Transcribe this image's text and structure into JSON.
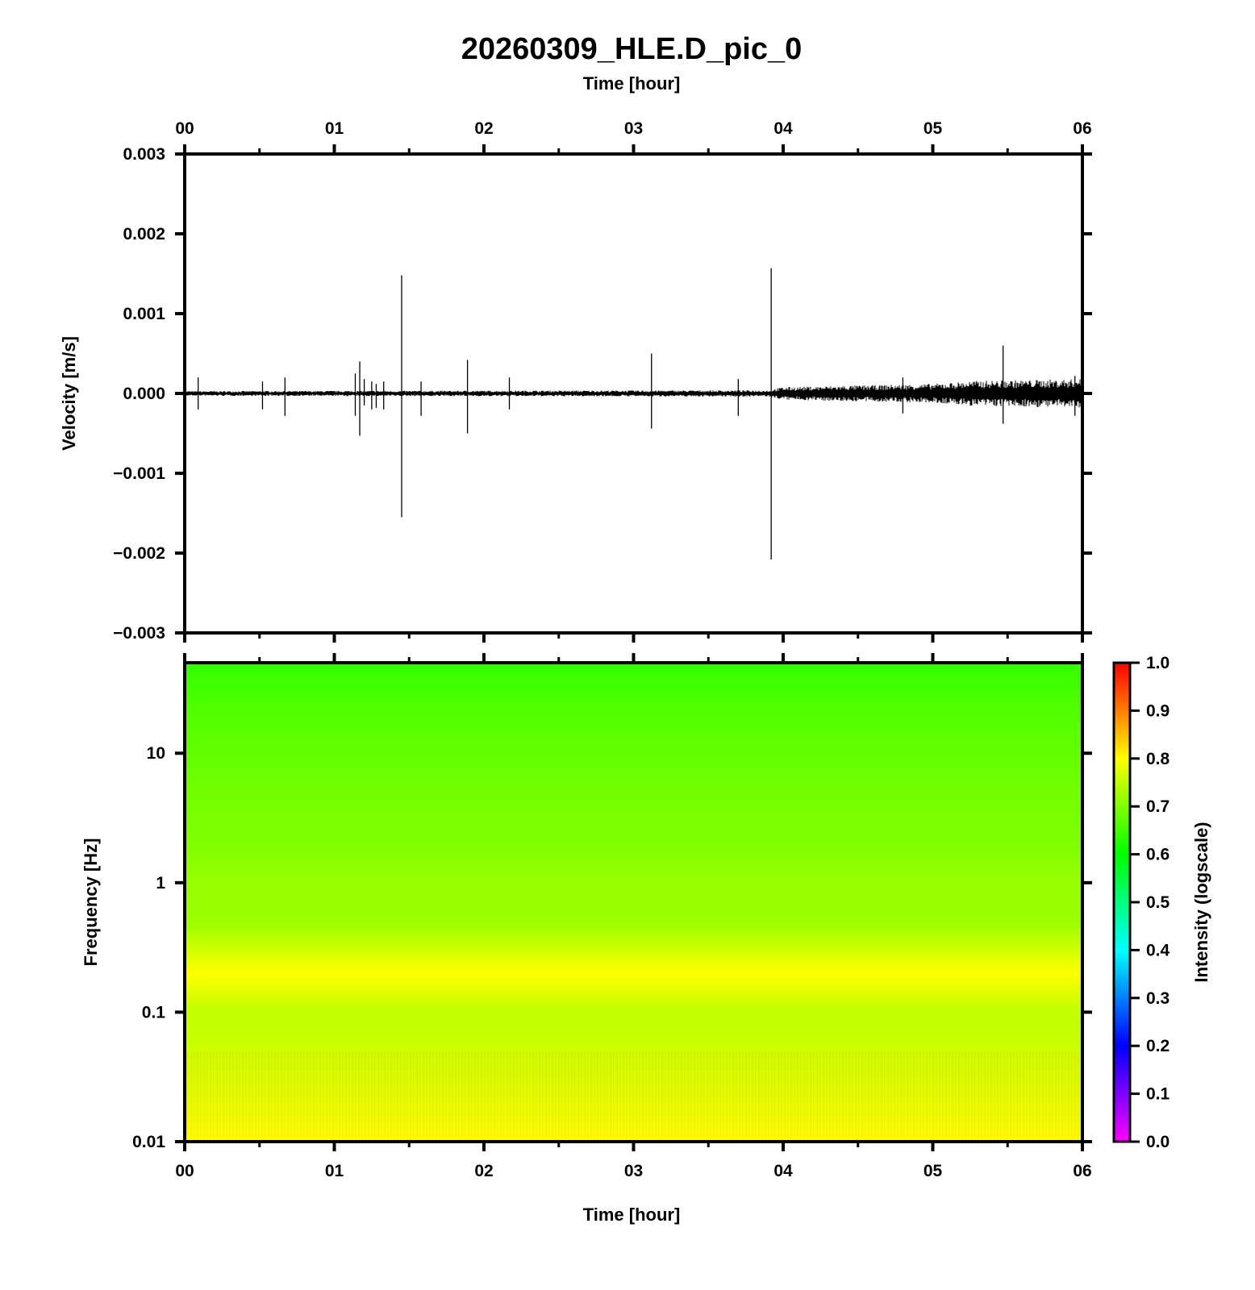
{
  "chart_data": [
    {
      "type": "line",
      "title": "20260309_HLE.D_pic_0",
      "xlabel_top": "Time [hour]",
      "ylabel": "Velocity [m/s]",
      "xlim": [
        0,
        6
      ],
      "ylim": [
        -0.003,
        0.003
      ],
      "x_ticks": [
        "00",
        "01",
        "02",
        "03",
        "04",
        "05",
        "06"
      ],
      "y_ticks": [
        {
          "value": 0.003,
          "label": "0.003"
        },
        {
          "value": 0.002,
          "label": "0.002"
        },
        {
          "value": 0.001,
          "label": "0.001"
        },
        {
          "value": 0.0,
          "label": "0.000"
        },
        {
          "value": -0.001,
          "label": "−0.001"
        },
        {
          "value": -0.002,
          "label": "−0.002"
        },
        {
          "value": -0.003,
          "label": "−0.003"
        }
      ],
      "baseline_noise": [
        {
          "t": 0.0,
          "amp": 3e-05
        },
        {
          "t": 3.9,
          "amp": 4e-05
        },
        {
          "t": 4.0,
          "amp": 8e-05
        },
        {
          "t": 4.5,
          "amp": 0.0001
        },
        {
          "t": 5.0,
          "amp": 0.00012
        },
        {
          "t": 5.3,
          "amp": 0.00016
        },
        {
          "t": 6.0,
          "amp": 0.00018
        }
      ],
      "spikes": [
        {
          "t": 0.09,
          "max": 0.0002,
          "min": -0.0002
        },
        {
          "t": 0.52,
          "max": 0.00015,
          "min": -0.0002
        },
        {
          "t": 0.67,
          "max": 0.0002,
          "min": -0.00028
        },
        {
          "t": 1.14,
          "max": 0.00025,
          "min": -0.00028
        },
        {
          "t": 1.17,
          "max": 0.0004,
          "min": -0.00053
        },
        {
          "t": 1.2,
          "max": 0.00018,
          "min": -0.00015
        },
        {
          "t": 1.25,
          "max": 0.00015,
          "min": -0.0002
        },
        {
          "t": 1.28,
          "max": 0.00012,
          "min": -0.00018
        },
        {
          "t": 1.33,
          "max": 0.00015,
          "min": -0.0002
        },
        {
          "t": 1.45,
          "max": 0.00148,
          "min": -0.00155
        },
        {
          "t": 1.58,
          "max": 0.00015,
          "min": -0.00028
        },
        {
          "t": 1.89,
          "max": 0.00042,
          "min": -0.0005
        },
        {
          "t": 2.17,
          "max": 0.0002,
          "min": -0.0002
        },
        {
          "t": 3.12,
          "max": 0.0005,
          "min": -0.00044
        },
        {
          "t": 3.7,
          "max": 0.00018,
          "min": -0.00028
        },
        {
          "t": 3.92,
          "max": 0.00157,
          "min": -0.00208
        },
        {
          "t": 4.8,
          "max": 0.0002,
          "min": -0.00025
        },
        {
          "t": 5.47,
          "max": 0.0006,
          "min": -0.00038
        },
        {
          "t": 5.95,
          "max": 0.00022,
          "min": -0.00028
        }
      ]
    },
    {
      "type": "heatmap",
      "xlabel": "Time [hour]",
      "ylabel": "Frequency [Hz]",
      "xlim": [
        0,
        6
      ],
      "ylim": [
        0.01,
        50
      ],
      "y_scale": "log",
      "x_ticks": [
        "00",
        "01",
        "02",
        "03",
        "04",
        "05",
        "06"
      ],
      "y_ticks": [
        {
          "value": 10,
          "label": "10"
        },
        {
          "value": 1,
          "label": "1"
        },
        {
          "value": 0.1,
          "label": "0.1"
        },
        {
          "value": 0.01,
          "label": "0.01"
        }
      ],
      "intensity_profile": [
        {
          "freq": 50,
          "intensity": 0.64
        },
        {
          "freq": 20,
          "intensity": 0.665
        },
        {
          "freq": 5,
          "intensity": 0.69
        },
        {
          "freq": 2,
          "intensity": 0.7
        },
        {
          "freq": 1,
          "intensity": 0.72
        },
        {
          "freq": 0.5,
          "intensity": 0.72
        },
        {
          "freq": 0.2,
          "intensity": 0.8
        },
        {
          "freq": 0.1,
          "intensity": 0.75
        },
        {
          "freq": 0.03,
          "intensity": 0.77
        },
        {
          "freq": 0.01,
          "intensity": 0.8
        }
      ],
      "colorbar": {
        "label": "Intensity (logscale)",
        "range": [
          0.0,
          1.0
        ],
        "ticks": [
          "0.0",
          "0.1",
          "0.2",
          "0.3",
          "0.4",
          "0.5",
          "0.6",
          "0.7",
          "0.8",
          "0.9",
          "1.0"
        ],
        "colors": [
          "#ff00ff",
          "#0000ff",
          "#00ffff",
          "#00ff00",
          "#ffff00",
          "#ff0000"
        ]
      }
    }
  ]
}
